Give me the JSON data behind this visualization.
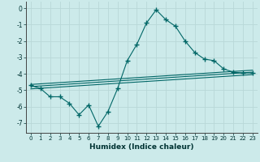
{
  "xlabel": "Humidex (Indice chaleur)",
  "ylabel": "",
  "background_color": "#cceaea",
  "grid_color": "#b8d8d8",
  "line_color": "#006666",
  "xlim": [
    -0.5,
    23.5
  ],
  "ylim": [
    -7.6,
    0.4
  ],
  "yticks": [
    0,
    -1,
    -2,
    -3,
    -4,
    -5,
    -6,
    -7
  ],
  "xticks": [
    0,
    1,
    2,
    3,
    4,
    5,
    6,
    7,
    8,
    9,
    10,
    11,
    12,
    13,
    14,
    15,
    16,
    17,
    18,
    19,
    20,
    21,
    22,
    23
  ],
  "main_line_x": [
    0,
    1,
    2,
    3,
    4,
    5,
    6,
    7,
    8,
    9,
    10,
    11,
    12,
    13,
    14,
    15,
    16,
    17,
    18,
    19,
    20,
    21,
    22,
    23
  ],
  "main_line_y": [
    -4.7,
    -4.9,
    -5.4,
    -5.4,
    -5.8,
    -6.5,
    -5.9,
    -7.2,
    -6.3,
    -4.9,
    -3.2,
    -2.2,
    -0.9,
    -0.1,
    -0.7,
    -1.1,
    -2.0,
    -2.7,
    -3.1,
    -3.2,
    -3.7,
    -3.9,
    -3.95,
    -3.95
  ],
  "line1_x": [
    0,
    23
  ],
  "line1_y": [
    -4.65,
    -3.78
  ],
  "line2_x": [
    0,
    23
  ],
  "line2_y": [
    -4.78,
    -3.9
  ],
  "line3_x": [
    0,
    23
  ],
  "line3_y": [
    -4.92,
    -4.05
  ]
}
